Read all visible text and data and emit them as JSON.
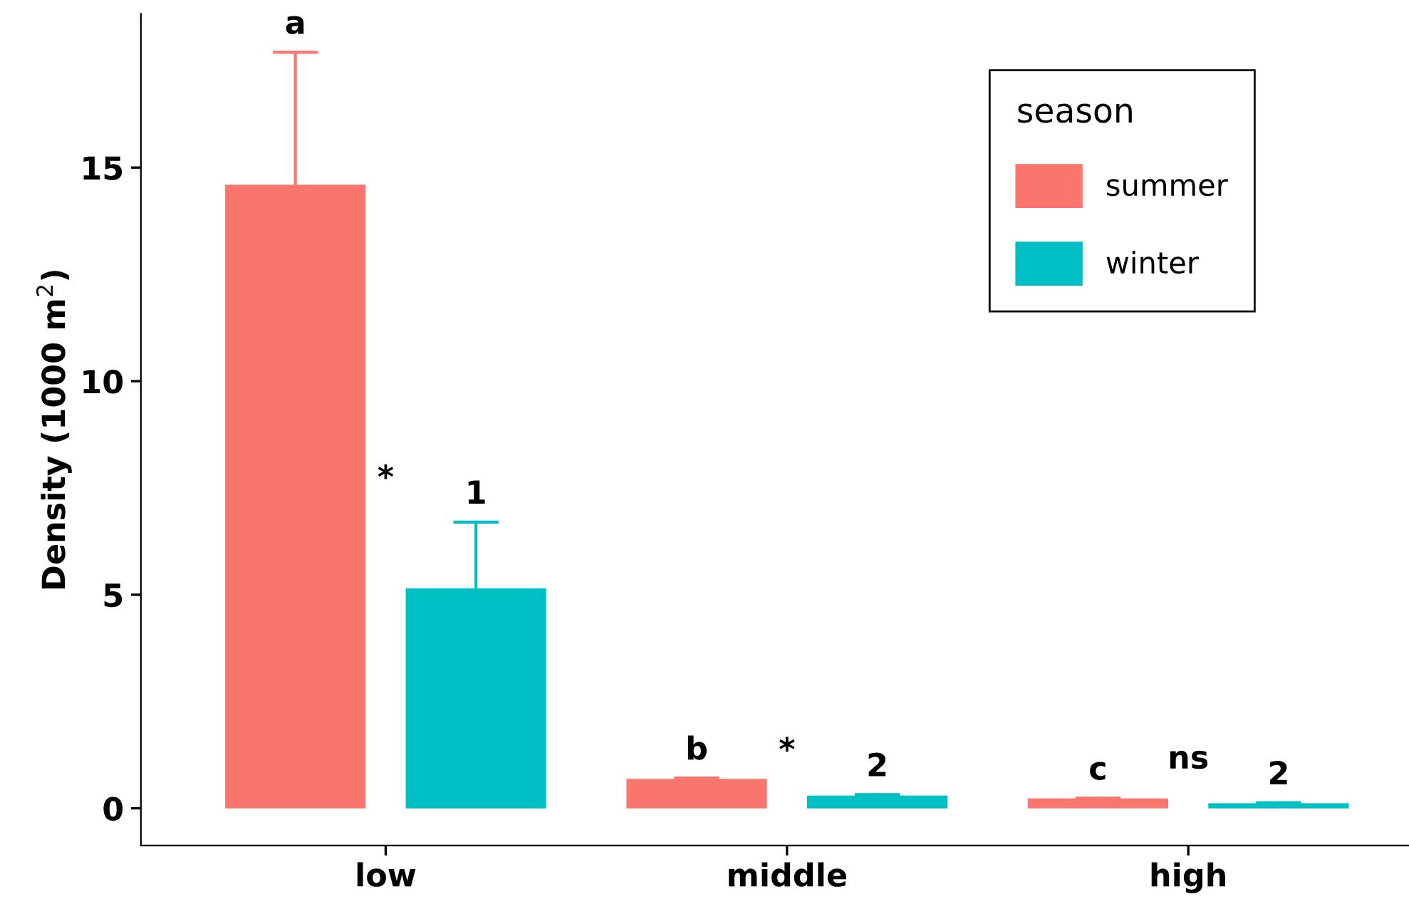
{
  "chart_data": {
    "type": "bar",
    "ylabel": "Density (1000 m$^{2}$)",
    "legend_title": "season",
    "categories": [
      "low",
      "middle",
      "high"
    ],
    "series": [
      {
        "name": "summer",
        "color": "#f8766d",
        "values": [
          14.6,
          0.69,
          0.23
        ],
        "errors": [
          [
            14.6,
            17.7
          ],
          [
            0.69,
            0.71
          ],
          [
            0.23,
            0.24
          ]
        ]
      },
      {
        "name": "winter",
        "color": "#00bfc4",
        "values": [
          5.15,
          0.3,
          0.12
        ],
        "errors": [
          [
            5.15,
            6.7
          ],
          [
            0.3,
            0.32
          ],
          [
            0.12,
            0.13
          ]
        ]
      }
    ],
    "annotations": [
      "a",
      "*",
      "1",
      "b",
      "*",
      "2",
      "c",
      "ns",
      "2"
    ],
    "ylim": [
      -0.87,
      18.6
    ],
    "yticks": [
      0,
      5,
      10,
      15
    ],
    "grid": false,
    "legend": "top right"
  }
}
